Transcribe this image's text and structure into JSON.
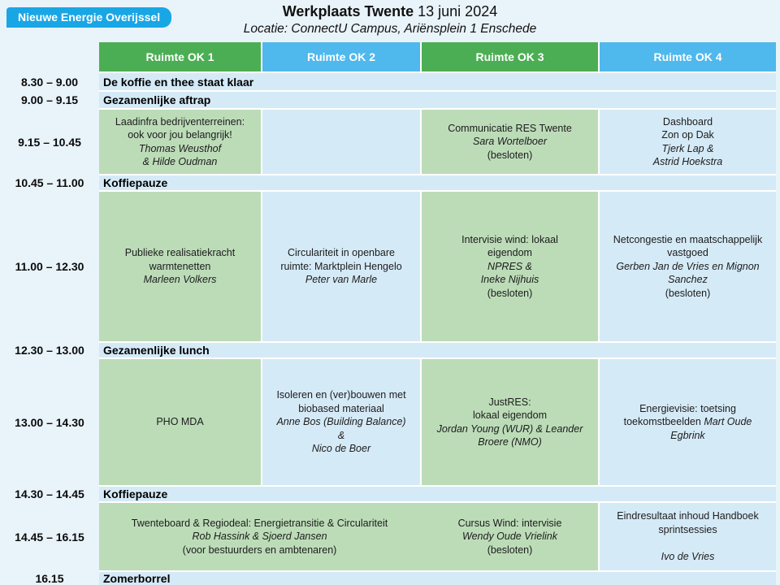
{
  "badge": {
    "label": "Nieuwe Energie Overijssel"
  },
  "header": {
    "title_bold": "Werkplaats Twente",
    "title_date": " 13 juni 2024",
    "subtitle": "Locatie: ConnectU Campus, Ariënsplein 1 Enschede"
  },
  "room_headers": {
    "ok1": "Ruimte OK 1",
    "ok2": "Ruimte OK 2",
    "ok3": "Ruimte OK 3",
    "ok4": "Ruimte OK 4"
  },
  "times": {
    "t1": "8.30 – 9.00",
    "t2": "9.00 – 9.15",
    "t3": "9.15 – 10.45",
    "t4": "10.45 – 11.00",
    "t5": "11.00 – 12.30",
    "t6": "12.30 – 13.00",
    "t7": "13.00 – 14.30",
    "t8": "14.30 – 14.45",
    "t9": "14.45 – 16.15",
    "t10": "16.15"
  },
  "full_rows": {
    "koffie_klaar": "De koffie en thee staat klaar",
    "aftrap": "Gezamenlijke aftrap",
    "koffiepauze1": "Koffiepauze",
    "lunch": "Gezamenlijke lunch",
    "koffiepauze2": "Koffiepauze",
    "zomerborrel": "Zomerborrel"
  },
  "sessions": {
    "laadinfra": {
      "lines": [
        {
          "t": "Laadinfra bedrijventerreinen:"
        },
        {
          "t": "ook voor jou belangrijk!"
        },
        {
          "t": "Thomas Weusthof"
        },
        {
          "t": "& Hilde Oudman"
        }
      ]
    },
    "communicatie": {
      "lines": [
        {
          "t": "Communicatie RES Twente"
        },
        {
          "t": "Sara Wortelboer"
        },
        {
          "t": "(besloten)"
        }
      ]
    },
    "dashboard": {
      "lines": [
        {
          "t": "Dashboard"
        },
        {
          "t": "Zon op Dak"
        },
        {
          "t": "Tjerk Lap &"
        },
        {
          "t": "Astrid Hoekstra"
        }
      ]
    },
    "publieke": {
      "lines": [
        {
          "t": "Publieke realisatiekracht"
        },
        {
          "t": "warmtenetten"
        },
        {
          "t": "Marleen Volkers"
        }
      ]
    },
    "circulariteit": {
      "lines": [
        {
          "t": "Circulariteit in openbare"
        },
        {
          "t": "ruimte: Marktplein Hengelo"
        },
        {
          "t": "Peter van Marle"
        }
      ]
    },
    "intervisie": {
      "lines": [
        {
          "t": "Intervisie wind: lokaal"
        },
        {
          "t": "eigendom"
        },
        {
          "t": "NPRES &"
        },
        {
          "t": "Ineke Nijhuis"
        },
        {
          "t": "(besloten)"
        }
      ]
    },
    "netcongestie": {
      "lines": [
        {
          "t": "Netcongestie en maatschappelijk"
        },
        {
          "t": "vastgoed"
        },
        {
          "t": "Gerben Jan de Vries en Mignon"
        },
        {
          "t": "Sanchez"
        },
        {
          "t": "(besloten)"
        }
      ]
    },
    "pho": {
      "lines": [
        {
          "t": "PHO MDA"
        }
      ]
    },
    "isoleren": {
      "lines": [
        {
          "t": "Isoleren en (ver)bouwen met"
        },
        {
          "t": "biobased materiaal"
        },
        {
          "t": "Anne Bos (Building Balance)"
        },
        {
          "t": "&"
        },
        {
          "t": "Nico de Boer"
        }
      ]
    },
    "justres": {
      "lines": [
        {
          "t": "JustRES:"
        },
        {
          "t": "lokaal eigendom"
        },
        {
          "t": "Jordan Young (WUR) & Leander"
        },
        {
          "t": "Broere (NMO)"
        }
      ]
    },
    "energievisie": {
      "regular": "Energievisie: toetsing toekomstbeelden ",
      "italic": "Mart Oude Egbrink"
    },
    "twenteboard": {
      "lines": [
        {
          "t": "Twenteboard & Regiodeal: Energietransitie & Circulariteit"
        },
        {
          "t": "Rob Hassink & Sjoerd Jansen"
        },
        {
          "t": "(voor bestuurders en ambtenaren)"
        }
      ]
    },
    "cursus": {
      "lines": [
        {
          "t": "Cursus Wind: intervisie"
        },
        {
          "t": "Wendy Oude Vrielink"
        },
        {
          "t": "(besloten)"
        }
      ]
    },
    "eindresultaat": {
      "lines": [
        {
          "t": "Eindresultaat inhoud Handboek"
        },
        {
          "t": "sprintsessies"
        },
        {
          "t": "Ivo de Vries"
        }
      ]
    }
  },
  "colors": {
    "header_green": "#4cae54",
    "header_blue": "#4fb8ec",
    "session_green": "#bcdcb8",
    "row_blue": "#d5eaf7",
    "badge_blue": "#19a6e5",
    "page_background": "#e9f3fa"
  }
}
